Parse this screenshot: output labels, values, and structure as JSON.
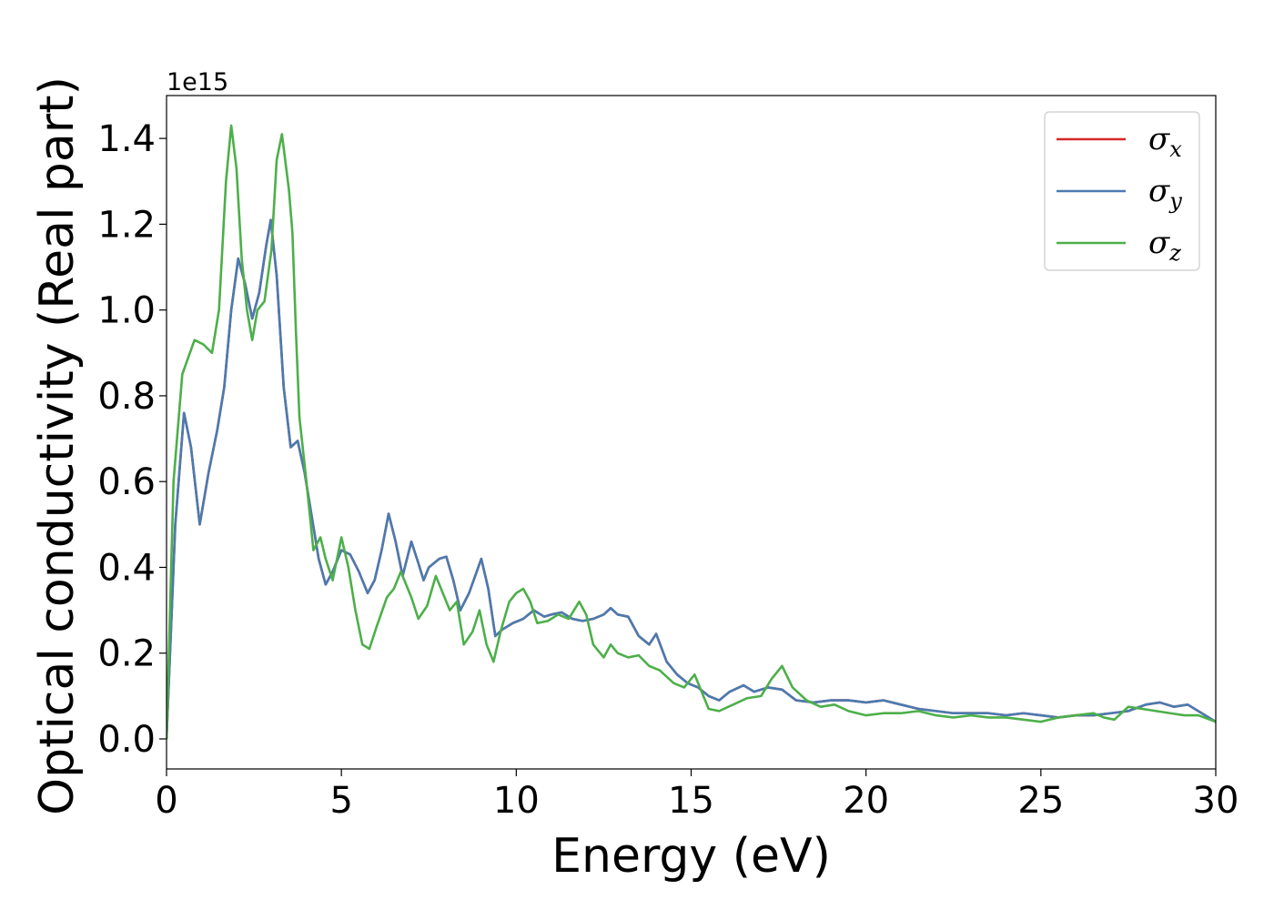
{
  "chart_data": {
    "type": "line",
    "xlabel": "Energy (eV)",
    "ylabel": "Optical conductivity (Real part)",
    "y_offset_label": "1e15",
    "y_multiplier": 1000000000000000.0,
    "xlim": [
      0,
      30
    ],
    "ylim": [
      -0.07,
      1.5
    ],
    "x_ticks": [
      0,
      5,
      10,
      15,
      20,
      25,
      30
    ],
    "x_tick_labels": [
      "0",
      "5",
      "10",
      "15",
      "20",
      "25",
      "30"
    ],
    "y_ticks": [
      0.0,
      0.2,
      0.4,
      0.6,
      0.8,
      1.0,
      1.2,
      1.4
    ],
    "y_tick_labels": [
      "0.0",
      "0.2",
      "0.4",
      "0.6",
      "0.8",
      "1.0",
      "1.2",
      "1.4"
    ],
    "grid": false,
    "legend_position": "top-right",
    "series": [
      {
        "name": "σ",
        "subscript": "x",
        "color": "#d62728",
        "points": [
          [
            0,
            0.0
          ],
          [
            0.25,
            0.5
          ],
          [
            0.5,
            0.76
          ],
          [
            0.7,
            0.68
          ],
          [
            0.95,
            0.5
          ],
          [
            1.2,
            0.62
          ],
          [
            1.45,
            0.72
          ],
          [
            1.65,
            0.82
          ],
          [
            1.85,
            1.0
          ],
          [
            2.05,
            1.12
          ],
          [
            2.25,
            1.06
          ],
          [
            2.45,
            0.98
          ],
          [
            2.65,
            1.04
          ],
          [
            2.85,
            1.15
          ],
          [
            2.98,
            1.21
          ],
          [
            3.15,
            1.08
          ],
          [
            3.35,
            0.82
          ],
          [
            3.55,
            0.68
          ],
          [
            3.75,
            0.695
          ],
          [
            3.95,
            0.62
          ],
          [
            4.15,
            0.52
          ],
          [
            4.35,
            0.42
          ],
          [
            4.55,
            0.36
          ],
          [
            4.75,
            0.39
          ],
          [
            5.0,
            0.44
          ],
          [
            5.25,
            0.43
          ],
          [
            5.5,
            0.39
          ],
          [
            5.75,
            0.34
          ],
          [
            5.95,
            0.37
          ],
          [
            6.15,
            0.44
          ],
          [
            6.35,
            0.525
          ],
          [
            6.55,
            0.46
          ],
          [
            6.75,
            0.38
          ],
          [
            7.0,
            0.46
          ],
          [
            7.2,
            0.41
          ],
          [
            7.35,
            0.37
          ],
          [
            7.5,
            0.4
          ],
          [
            7.8,
            0.42
          ],
          [
            8.0,
            0.425
          ],
          [
            8.2,
            0.37
          ],
          [
            8.4,
            0.3
          ],
          [
            8.65,
            0.34
          ],
          [
            9.0,
            0.42
          ],
          [
            9.2,
            0.35
          ],
          [
            9.4,
            0.24
          ],
          [
            9.6,
            0.255
          ],
          [
            9.9,
            0.27
          ],
          [
            10.2,
            0.28
          ],
          [
            10.5,
            0.3
          ],
          [
            10.8,
            0.285
          ],
          [
            11.0,
            0.29
          ],
          [
            11.3,
            0.295
          ],
          [
            11.6,
            0.28
          ],
          [
            11.9,
            0.275
          ],
          [
            12.2,
            0.28
          ],
          [
            12.5,
            0.29
          ],
          [
            12.7,
            0.305
          ],
          [
            12.9,
            0.29
          ],
          [
            13.2,
            0.285
          ],
          [
            13.5,
            0.24
          ],
          [
            13.8,
            0.22
          ],
          [
            14.0,
            0.245
          ],
          [
            14.3,
            0.18
          ],
          [
            14.6,
            0.15
          ],
          [
            14.9,
            0.13
          ],
          [
            15.2,
            0.12
          ],
          [
            15.5,
            0.1
          ],
          [
            15.8,
            0.09
          ],
          [
            16.1,
            0.11
          ],
          [
            16.5,
            0.125
          ],
          [
            16.8,
            0.11
          ],
          [
            17.2,
            0.12
          ],
          [
            17.6,
            0.115
          ],
          [
            18.0,
            0.09
          ],
          [
            18.5,
            0.085
          ],
          [
            19.0,
            0.09
          ],
          [
            19.5,
            0.09
          ],
          [
            20.0,
            0.085
          ],
          [
            20.5,
            0.09
          ],
          [
            21.0,
            0.08
          ],
          [
            21.5,
            0.07
          ],
          [
            22.0,
            0.065
          ],
          [
            22.5,
            0.06
          ],
          [
            23.0,
            0.06
          ],
          [
            23.5,
            0.06
          ],
          [
            24.0,
            0.055
          ],
          [
            24.5,
            0.06
          ],
          [
            25.0,
            0.055
          ],
          [
            25.5,
            0.05
          ],
          [
            26.0,
            0.055
          ],
          [
            26.5,
            0.055
          ],
          [
            27.0,
            0.06
          ],
          [
            27.5,
            0.065
          ],
          [
            28.0,
            0.08
          ],
          [
            28.4,
            0.085
          ],
          [
            28.8,
            0.075
          ],
          [
            29.2,
            0.08
          ],
          [
            29.6,
            0.06
          ],
          [
            30.0,
            0.04
          ]
        ]
      },
      {
        "name": "σ",
        "subscript": "y",
        "color": "#4a7bb0",
        "points": [
          [
            0,
            0.0
          ],
          [
            0.25,
            0.5
          ],
          [
            0.5,
            0.76
          ],
          [
            0.7,
            0.68
          ],
          [
            0.95,
            0.5
          ],
          [
            1.2,
            0.62
          ],
          [
            1.45,
            0.72
          ],
          [
            1.65,
            0.82
          ],
          [
            1.85,
            1.0
          ],
          [
            2.05,
            1.12
          ],
          [
            2.25,
            1.06
          ],
          [
            2.45,
            0.98
          ],
          [
            2.65,
            1.04
          ],
          [
            2.85,
            1.15
          ],
          [
            2.98,
            1.21
          ],
          [
            3.15,
            1.08
          ],
          [
            3.35,
            0.82
          ],
          [
            3.55,
            0.68
          ],
          [
            3.75,
            0.695
          ],
          [
            3.95,
            0.62
          ],
          [
            4.15,
            0.52
          ],
          [
            4.35,
            0.42
          ],
          [
            4.55,
            0.36
          ],
          [
            4.75,
            0.39
          ],
          [
            5.0,
            0.44
          ],
          [
            5.25,
            0.43
          ],
          [
            5.5,
            0.39
          ],
          [
            5.75,
            0.34
          ],
          [
            5.95,
            0.37
          ],
          [
            6.15,
            0.44
          ],
          [
            6.35,
            0.525
          ],
          [
            6.55,
            0.46
          ],
          [
            6.75,
            0.38
          ],
          [
            7.0,
            0.46
          ],
          [
            7.2,
            0.41
          ],
          [
            7.35,
            0.37
          ],
          [
            7.5,
            0.4
          ],
          [
            7.8,
            0.42
          ],
          [
            8.0,
            0.425
          ],
          [
            8.2,
            0.37
          ],
          [
            8.4,
            0.3
          ],
          [
            8.65,
            0.34
          ],
          [
            9.0,
            0.42
          ],
          [
            9.2,
            0.35
          ],
          [
            9.4,
            0.24
          ],
          [
            9.6,
            0.255
          ],
          [
            9.9,
            0.27
          ],
          [
            10.2,
            0.28
          ],
          [
            10.5,
            0.3
          ],
          [
            10.8,
            0.285
          ],
          [
            11.0,
            0.29
          ],
          [
            11.3,
            0.295
          ],
          [
            11.6,
            0.28
          ],
          [
            11.9,
            0.275
          ],
          [
            12.2,
            0.28
          ],
          [
            12.5,
            0.29
          ],
          [
            12.7,
            0.305
          ],
          [
            12.9,
            0.29
          ],
          [
            13.2,
            0.285
          ],
          [
            13.5,
            0.24
          ],
          [
            13.8,
            0.22
          ],
          [
            14.0,
            0.245
          ],
          [
            14.3,
            0.18
          ],
          [
            14.6,
            0.15
          ],
          [
            14.9,
            0.13
          ],
          [
            15.2,
            0.12
          ],
          [
            15.5,
            0.1
          ],
          [
            15.8,
            0.09
          ],
          [
            16.1,
            0.11
          ],
          [
            16.5,
            0.125
          ],
          [
            16.8,
            0.11
          ],
          [
            17.2,
            0.12
          ],
          [
            17.6,
            0.115
          ],
          [
            18.0,
            0.09
          ],
          [
            18.5,
            0.085
          ],
          [
            19.0,
            0.09
          ],
          [
            19.5,
            0.09
          ],
          [
            20.0,
            0.085
          ],
          [
            20.5,
            0.09
          ],
          [
            21.0,
            0.08
          ],
          [
            21.5,
            0.07
          ],
          [
            22.0,
            0.065
          ],
          [
            22.5,
            0.06
          ],
          [
            23.0,
            0.06
          ],
          [
            23.5,
            0.06
          ],
          [
            24.0,
            0.055
          ],
          [
            24.5,
            0.06
          ],
          [
            25.0,
            0.055
          ],
          [
            25.5,
            0.05
          ],
          [
            26.0,
            0.055
          ],
          [
            26.5,
            0.055
          ],
          [
            27.0,
            0.06
          ],
          [
            27.5,
            0.065
          ],
          [
            28.0,
            0.08
          ],
          [
            28.4,
            0.085
          ],
          [
            28.8,
            0.075
          ],
          [
            29.2,
            0.08
          ],
          [
            29.6,
            0.06
          ],
          [
            30.0,
            0.04
          ]
        ]
      },
      {
        "name": "σ",
        "subscript": "z",
        "color": "#4daf4a",
        "points": [
          [
            0,
            0.0
          ],
          [
            0.2,
            0.6
          ],
          [
            0.45,
            0.85
          ],
          [
            0.8,
            0.93
          ],
          [
            1.05,
            0.92
          ],
          [
            1.3,
            0.9
          ],
          [
            1.5,
            1.0
          ],
          [
            1.7,
            1.3
          ],
          [
            1.85,
            1.43
          ],
          [
            2.0,
            1.33
          ],
          [
            2.15,
            1.12
          ],
          [
            2.3,
            1.0
          ],
          [
            2.45,
            0.93
          ],
          [
            2.6,
            1.0
          ],
          [
            2.8,
            1.02
          ],
          [
            3.0,
            1.14
          ],
          [
            3.15,
            1.35
          ],
          [
            3.3,
            1.41
          ],
          [
            3.5,
            1.28
          ],
          [
            3.6,
            1.18
          ],
          [
            3.7,
            0.95
          ],
          [
            3.8,
            0.75
          ],
          [
            4.0,
            0.6
          ],
          [
            4.2,
            0.44
          ],
          [
            4.4,
            0.47
          ],
          [
            4.55,
            0.42
          ],
          [
            4.75,
            0.37
          ],
          [
            5.0,
            0.47
          ],
          [
            5.2,
            0.4
          ],
          [
            5.4,
            0.3
          ],
          [
            5.6,
            0.22
          ],
          [
            5.8,
            0.21
          ],
          [
            6.0,
            0.26
          ],
          [
            6.3,
            0.33
          ],
          [
            6.5,
            0.35
          ],
          [
            6.7,
            0.39
          ],
          [
            7.0,
            0.33
          ],
          [
            7.2,
            0.28
          ],
          [
            7.45,
            0.31
          ],
          [
            7.7,
            0.38
          ],
          [
            7.95,
            0.33
          ],
          [
            8.1,
            0.3
          ],
          [
            8.3,
            0.32
          ],
          [
            8.5,
            0.22
          ],
          [
            8.75,
            0.25
          ],
          [
            8.95,
            0.3
          ],
          [
            9.15,
            0.22
          ],
          [
            9.35,
            0.18
          ],
          [
            9.55,
            0.25
          ],
          [
            9.8,
            0.32
          ],
          [
            10.0,
            0.34
          ],
          [
            10.2,
            0.35
          ],
          [
            10.4,
            0.32
          ],
          [
            10.6,
            0.27
          ],
          [
            10.9,
            0.275
          ],
          [
            11.2,
            0.29
          ],
          [
            11.5,
            0.28
          ],
          [
            11.8,
            0.32
          ],
          [
            12.0,
            0.29
          ],
          [
            12.2,
            0.22
          ],
          [
            12.5,
            0.19
          ],
          [
            12.7,
            0.22
          ],
          [
            12.9,
            0.2
          ],
          [
            13.2,
            0.19
          ],
          [
            13.5,
            0.195
          ],
          [
            13.8,
            0.17
          ],
          [
            14.1,
            0.16
          ],
          [
            14.5,
            0.13
          ],
          [
            14.8,
            0.12
          ],
          [
            15.1,
            0.15
          ],
          [
            15.3,
            0.11
          ],
          [
            15.5,
            0.07
          ],
          [
            15.8,
            0.065
          ],
          [
            16.2,
            0.08
          ],
          [
            16.6,
            0.095
          ],
          [
            17.0,
            0.1
          ],
          [
            17.3,
            0.14
          ],
          [
            17.6,
            0.17
          ],
          [
            17.9,
            0.12
          ],
          [
            18.3,
            0.09
          ],
          [
            18.7,
            0.075
          ],
          [
            19.1,
            0.08
          ],
          [
            19.5,
            0.065
          ],
          [
            20.0,
            0.055
          ],
          [
            20.5,
            0.06
          ],
          [
            21.0,
            0.06
          ],
          [
            21.5,
            0.065
          ],
          [
            22.0,
            0.055
          ],
          [
            22.5,
            0.05
          ],
          [
            23.0,
            0.055
          ],
          [
            23.5,
            0.05
          ],
          [
            24.0,
            0.05
          ],
          [
            24.5,
            0.045
          ],
          [
            25.0,
            0.04
          ],
          [
            25.5,
            0.05
          ],
          [
            26.0,
            0.055
          ],
          [
            26.5,
            0.06
          ],
          [
            26.8,
            0.05
          ],
          [
            27.1,
            0.045
          ],
          [
            27.5,
            0.075
          ],
          [
            27.9,
            0.07
          ],
          [
            28.3,
            0.065
          ],
          [
            28.7,
            0.06
          ],
          [
            29.1,
            0.055
          ],
          [
            29.5,
            0.055
          ],
          [
            30.0,
            0.04
          ]
        ]
      }
    ]
  },
  "colors": {
    "axis": "#000000",
    "background": "#ffffff",
    "legend_border": "#cccccc"
  }
}
